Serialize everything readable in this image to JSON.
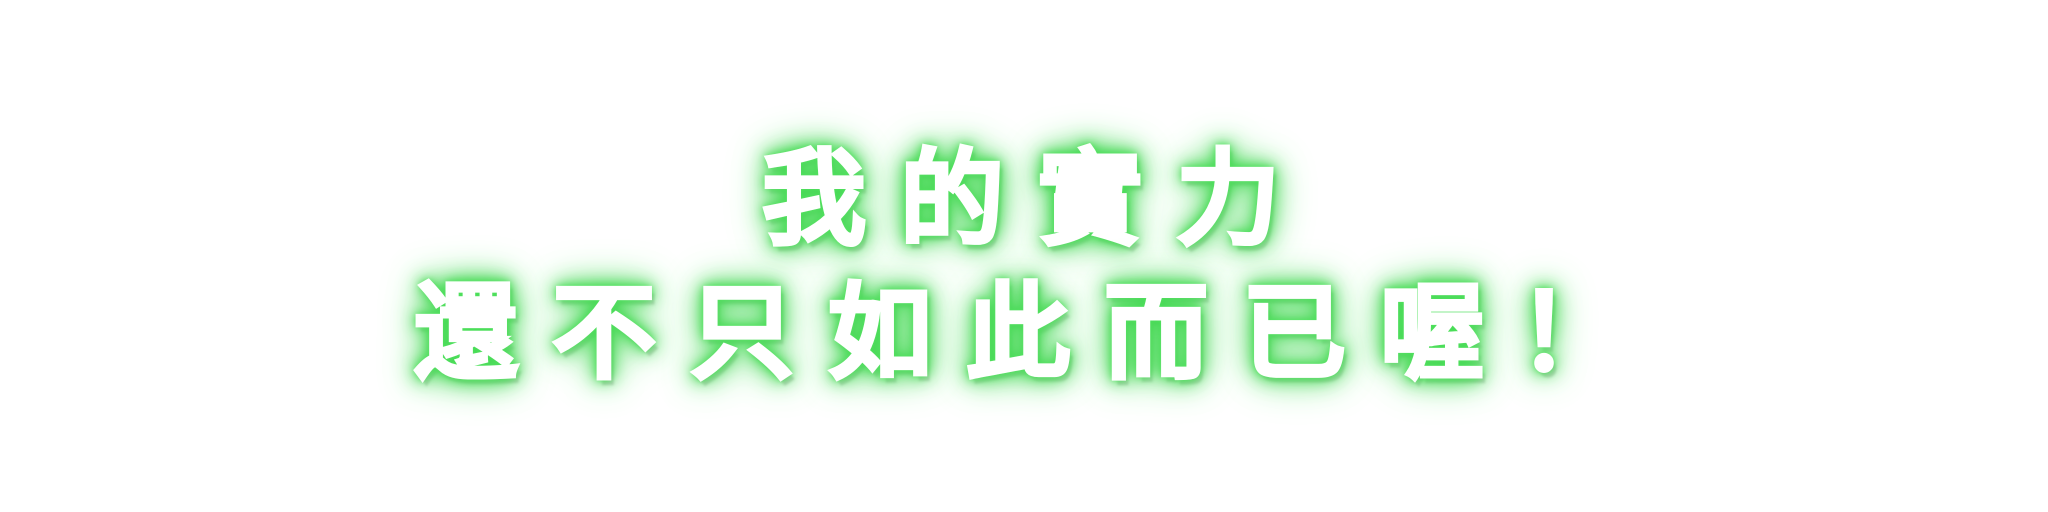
{
  "headline": {
    "line1": "我的實力",
    "line2": "還不只如此而已喔！"
  },
  "colors": {
    "text": "#ffffff",
    "glow": "#3fd64e",
    "background": "#ffffff"
  }
}
